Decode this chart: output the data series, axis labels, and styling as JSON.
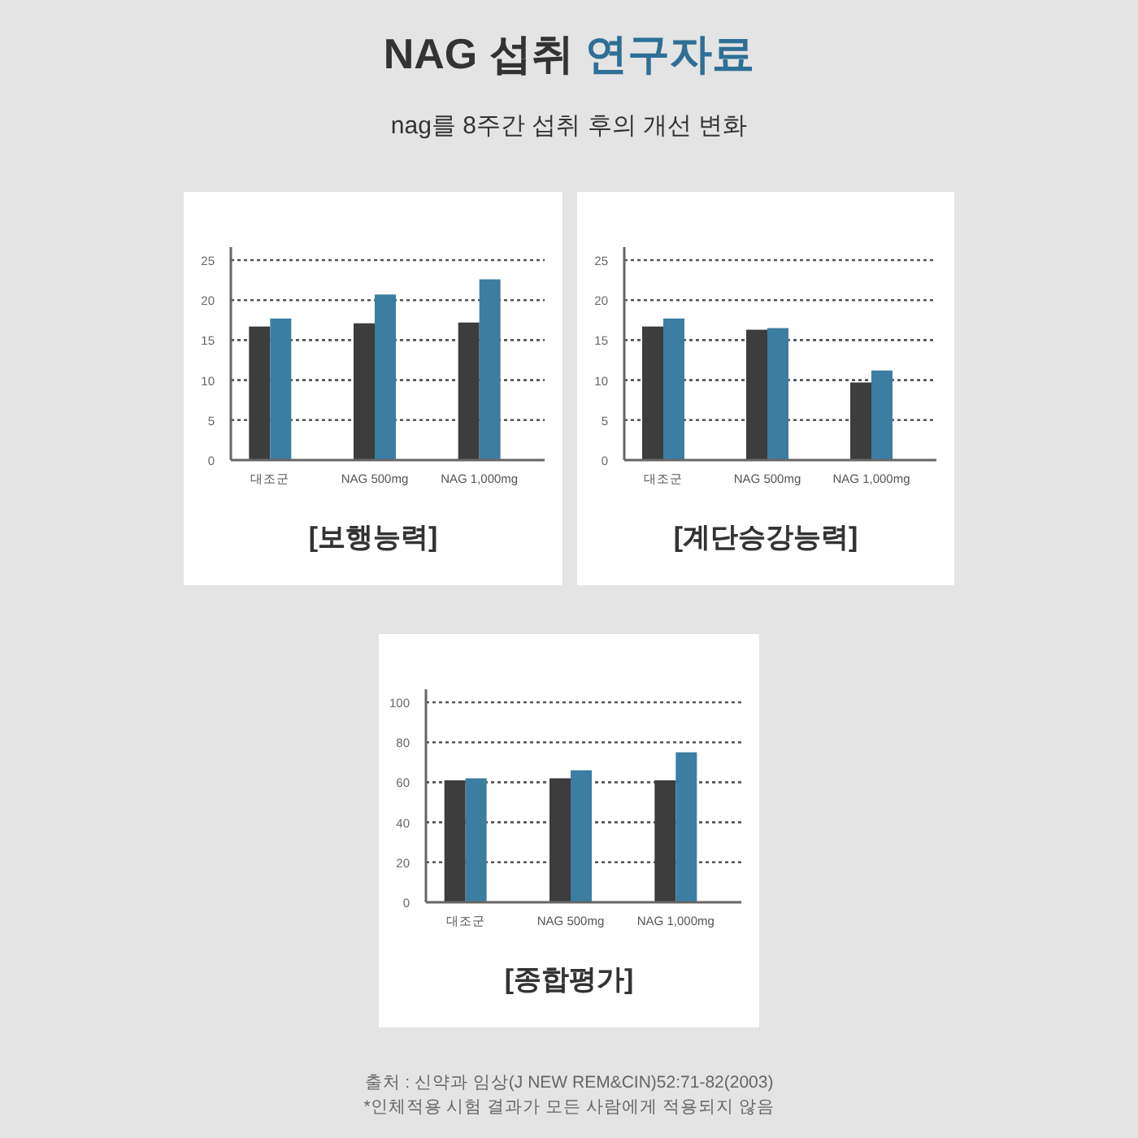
{
  "chart_data": [
    {
      "type": "bar",
      "title": "[보행능력]",
      "categories": [
        "대조군",
        "NAG 500mg",
        "NAG 1,000mg"
      ],
      "series": [
        {
          "color": "#3d3d3d",
          "values": [
            16.7,
            17.1,
            17.2
          ]
        },
        {
          "color": "#3b7ea1",
          "values": [
            17.7,
            20.7,
            22.6
          ]
        }
      ],
      "ylim": [
        0,
        25
      ],
      "yticks": [
        0,
        5,
        10,
        15,
        20,
        25
      ],
      "grid": "y"
    },
    {
      "type": "bar",
      "title": "[계단승강능력]",
      "categories": [
        "대조군",
        "NAG 500mg",
        "NAG 1,000mg"
      ],
      "series": [
        {
          "color": "#3d3d3d",
          "values": [
            16.7,
            16.3,
            9.7
          ]
        },
        {
          "color": "#3b7ea1",
          "values": [
            17.7,
            16.5,
            11.2
          ]
        }
      ],
      "ylim": [
        0,
        25
      ],
      "yticks": [
        0,
        5,
        10,
        15,
        20,
        25
      ],
      "grid": "y"
    },
    {
      "type": "bar",
      "title": "[종합평가]",
      "categories": [
        "대조군",
        "NAG 500mg",
        "NAG 1,000mg"
      ],
      "series": [
        {
          "color": "#3d3d3d",
          "values": [
            61,
            62,
            61
          ]
        },
        {
          "color": "#3b7ea1",
          "values": [
            62,
            66,
            75
          ]
        }
      ],
      "ylim": [
        0,
        100
      ],
      "yticks": [
        0,
        20,
        40,
        60,
        80,
        100
      ],
      "grid": "y"
    },
    {
      "type": "other",
      "title": "NAG 섭취 연구자료",
      "subtitle": "nag를 8주간 섭취 후의 개선 변화",
      "annotations": [
        "출처 : 신약과 임상(J NEW REM&CIN)52:71-82(2003)",
        "*인체적용 시험 결과가 모든 사람에게 적용되지 않음"
      ]
    }
  ]
}
